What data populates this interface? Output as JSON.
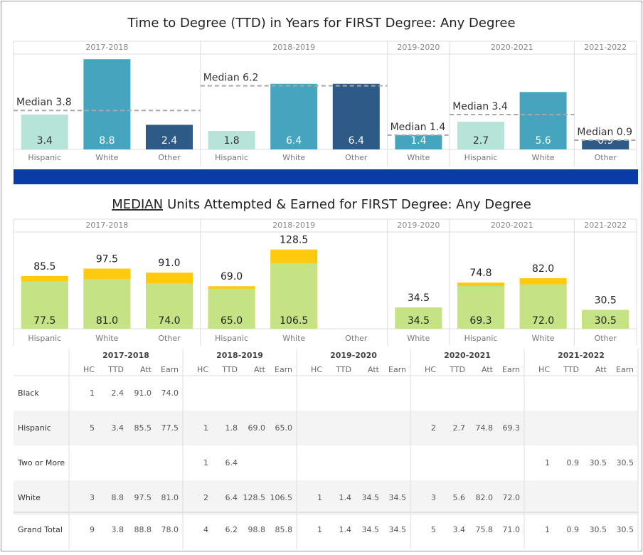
{
  "chart_data": [
    {
      "type": "bar",
      "title": "Time to Degree (TTD) in Years for FIRST Degree: Any Degree",
      "ylim": [
        0,
        9.3
      ],
      "panels": [
        {
          "header": "2017-2018",
          "categories": [
            "Hispanic",
            "White",
            "Other"
          ],
          "values": [
            3.4,
            8.8,
            2.4
          ],
          "colors": [
            "#b7e4d9",
            "#45a5bf",
            "#2d5a86"
          ],
          "median": 3.8,
          "median_label": "Median 3.8"
        },
        {
          "header": "2018-2019",
          "categories": [
            "Hispanic",
            "White",
            "Other"
          ],
          "values": [
            1.8,
            6.4,
            6.4
          ],
          "colors": [
            "#b7e4d9",
            "#45a5bf",
            "#2d5a86"
          ],
          "median": 6.2,
          "median_label": "Median 6.2"
        },
        {
          "header": "2019-2020",
          "categories": [
            "White"
          ],
          "values": [
            1.4
          ],
          "colors": [
            "#45a5bf"
          ],
          "median": 1.4,
          "median_label": "Median 1.4"
        },
        {
          "header": "2020-2021",
          "categories": [
            "Hispanic",
            "White"
          ],
          "values": [
            2.7,
            5.6
          ],
          "colors": [
            "#b7e4d9",
            "#45a5bf"
          ],
          "median": 3.4,
          "median_label": "Median 3.4"
        },
        {
          "header": "2021-2022",
          "categories": [
            "Other"
          ],
          "values": [
            0.9
          ],
          "colors": [
            "#2d5a86"
          ],
          "median": 0.9,
          "median_label": "Median 0.9"
        }
      ]
    },
    {
      "type": "overlapping_bar",
      "title_underlined": "MEDIAN",
      "title": "Units Attempted & Earned for FIRST Degree: Any Degree",
      "ylim": [
        0,
        157
      ],
      "panels": [
        {
          "header": "2017-2018",
          "categories": [
            "Hispanic",
            "White",
            "Other"
          ],
          "series": [
            {
              "color": "#ffc90e",
              "values": [
                85.5,
                97.5,
                91.0
              ],
              "value_labels": [
                "85.5",
                "97.5",
                "91.0"
              ]
            },
            {
              "color": "#c5e285",
              "values": [
                77.5,
                81.0,
                74.0
              ],
              "value_labels": [
                "77.5",
                "81.0",
                "74.0"
              ]
            }
          ]
        },
        {
          "header": "2018-2019",
          "categories": [
            "Hispanic",
            "White",
            "Other"
          ],
          "series": [
            {
              "color": "#ffc90e",
              "values": [
                69.0,
                128.5,
                null
              ],
              "value_labels": [
                "69.0",
                "128.5",
                null
              ]
            },
            {
              "color": "#c5e285",
              "values": [
                65.0,
                106.5,
                null
              ],
              "value_labels": [
                "65.0",
                "106.5",
                null
              ]
            }
          ]
        },
        {
          "header": "2019-2020",
          "categories": [
            "White"
          ],
          "series": [
            {
              "color": "#ffc90e",
              "values": [
                34.5
              ],
              "value_labels": [
                "34.5"
              ]
            },
            {
              "color": "#c5e285",
              "values": [
                34.5
              ],
              "value_labels": [
                "34.5"
              ]
            }
          ]
        },
        {
          "header": "2020-2021",
          "categories": [
            "Hispanic",
            "White"
          ],
          "series": [
            {
              "color": "#ffc90e",
              "values": [
                74.8,
                82.0
              ],
              "value_labels": [
                "74.8",
                "82.0"
              ]
            },
            {
              "color": "#c5e285",
              "values": [
                69.3,
                72.0
              ],
              "value_labels": [
                "69.3",
                "72.0"
              ]
            }
          ]
        },
        {
          "header": "2021-2022",
          "categories": [
            "Other"
          ],
          "series": [
            {
              "color": "#ffc90e",
              "values": [
                30.5
              ],
              "value_labels": [
                "30.5"
              ]
            },
            {
              "color": "#c5e285",
              "values": [
                30.5
              ],
              "value_labels": [
                "30.5"
              ]
            }
          ]
        }
      ]
    }
  ],
  "table": {
    "groups": [
      "2017-2018",
      "2018-2019",
      "2019-2020",
      "2020-2021",
      "2021-2022"
    ],
    "columns": [
      "HC",
      "TTD",
      "Att",
      "Earn"
    ],
    "rows": [
      {
        "label": "Black",
        "cells": [
          [
            "1",
            "2.4",
            "91.0",
            "74.0"
          ],
          null,
          null,
          null,
          null
        ]
      },
      {
        "label": "Hispanic",
        "cells": [
          [
            "5",
            "3.4",
            "85.5",
            "77.5"
          ],
          [
            "1",
            "1.8",
            "69.0",
            "65.0"
          ],
          null,
          [
            "2",
            "2.7",
            "74.8",
            "69.3"
          ],
          null
        ]
      },
      {
        "label": "Two or More",
        "cells": [
          null,
          [
            "1",
            "6.4",
            null,
            null
          ],
          null,
          null,
          [
            "1",
            "0.9",
            "30.5",
            "30.5"
          ]
        ]
      },
      {
        "label": "White",
        "cells": [
          [
            "3",
            "8.8",
            "97.5",
            "81.0"
          ],
          [
            "2",
            "6.4",
            "128.5",
            "106.5"
          ],
          [
            "1",
            "1.4",
            "34.5",
            "34.5"
          ],
          [
            "3",
            "5.6",
            "82.0",
            "72.0"
          ],
          null
        ]
      },
      {
        "label": "Grand Total",
        "cells": [
          [
            "9",
            "3.8",
            "88.8",
            "78.0"
          ],
          [
            "4",
            "6.2",
            "98.8",
            "85.8"
          ],
          [
            "1",
            "1.4",
            "34.5",
            "34.5"
          ],
          [
            "5",
            "3.4",
            "75.8",
            "71.0"
          ],
          [
            "1",
            "0.9",
            "30.5",
            "30.5"
          ]
        ]
      }
    ]
  }
}
